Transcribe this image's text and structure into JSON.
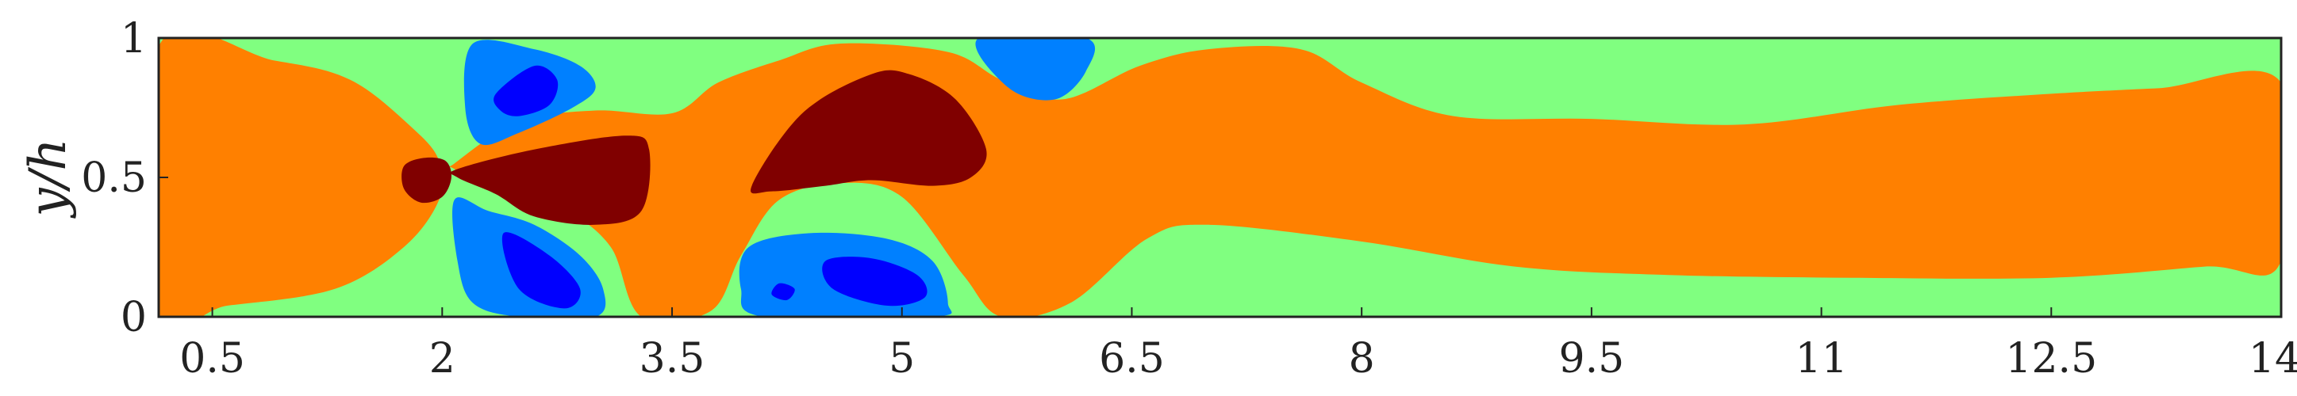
{
  "chart_data": {
    "type": "heatmap",
    "title": "",
    "xlabel": "",
    "ylabel": "y/h",
    "xlim": [
      0.15,
      14
    ],
    "ylim": [
      0,
      1
    ],
    "xticks": [
      0.5,
      2,
      3.5,
      5,
      6.5,
      8,
      9.5,
      11,
      12.5,
      14
    ],
    "xtick_labels": [
      "0.5",
      "2",
      "3.5",
      "5",
      "6.5",
      "8",
      "9.5",
      "11",
      "12.5",
      "14"
    ],
    "yticks": [
      0,
      0.5,
      1
    ],
    "ytick_labels": [
      "0",
      "0.5",
      "1"
    ],
    "colorbar": false,
    "levels": [
      {
        "name": "level-1",
        "color": "#0000ff"
      },
      {
        "name": "level-2",
        "color": "#0080ff"
      },
      {
        "name": "level-3",
        "color": "#80ff80"
      },
      {
        "name": "level-4",
        "color": "#ff8000"
      },
      {
        "name": "level-5",
        "color": "#800000"
      }
    ],
    "regions": [
      {
        "level": 4,
        "points": [
          [
            0.15,
            0.97
          ],
          [
            0.9,
            0.92
          ],
          [
            1.4,
            0.85
          ],
          [
            1.8,
            0.68
          ],
          [
            1.98,
            0.56
          ],
          [
            1.98,
            0.42
          ],
          [
            1.75,
            0.25
          ],
          [
            1.3,
            0.1
          ],
          [
            0.6,
            0.04
          ],
          [
            0.15,
            0.02
          ]
        ]
      },
      {
        "level": 4,
        "points": [
          [
            2.08,
            0.55
          ],
          [
            2.5,
            0.7
          ],
          [
            3.0,
            0.74
          ],
          [
            3.5,
            0.73
          ],
          [
            3.8,
            0.84
          ],
          [
            4.2,
            0.92
          ],
          [
            4.6,
            0.98
          ],
          [
            5.3,
            0.95
          ],
          [
            5.65,
            0.85
          ],
          [
            6.05,
            0.78
          ],
          [
            6.55,
            0.9
          ],
          [
            7.0,
            0.96
          ],
          [
            7.6,
            0.96
          ],
          [
            8.0,
            0.84
          ],
          [
            8.6,
            0.72
          ],
          [
            9.5,
            0.71
          ],
          [
            10.5,
            0.69
          ],
          [
            11.5,
            0.76
          ],
          [
            12.5,
            0.8
          ],
          [
            13.2,
            0.82
          ],
          [
            14,
            0.84
          ],
          [
            14,
            0.2
          ],
          [
            13.5,
            0.18
          ],
          [
            12.5,
            0.14
          ],
          [
            11.2,
            0.14
          ],
          [
            10.0,
            0.15
          ],
          [
            9.0,
            0.18
          ],
          [
            8.0,
            0.27
          ],
          [
            7.0,
            0.33
          ],
          [
            6.6,
            0.28
          ],
          [
            6.1,
            0.05
          ],
          [
            5.65,
            0.0
          ],
          [
            5.4,
            0.15
          ],
          [
            5.0,
            0.43
          ],
          [
            4.6,
            0.48
          ],
          [
            4.2,
            0.42
          ],
          [
            3.95,
            0.22
          ],
          [
            3.75,
            0.02
          ],
          [
            3.3,
            0.0
          ],
          [
            3.1,
            0.25
          ],
          [
            2.8,
            0.38
          ],
          [
            2.4,
            0.43
          ],
          [
            2.08,
            0.53
          ]
        ]
      },
      {
        "level": 5,
        "points": [
          [
            1.75,
            0.54
          ],
          [
            1.88,
            0.57
          ],
          [
            2.02,
            0.56
          ],
          [
            2.06,
            0.5
          ],
          [
            2.0,
            0.43
          ],
          [
            1.86,
            0.41
          ],
          [
            1.75,
            0.46
          ]
        ]
      },
      {
        "level": 5,
        "points": [
          [
            2.1,
            0.53
          ],
          [
            2.6,
            0.6
          ],
          [
            3.2,
            0.65
          ],
          [
            3.35,
            0.6
          ],
          [
            3.3,
            0.38
          ],
          [
            3.0,
            0.33
          ],
          [
            2.6,
            0.36
          ],
          [
            2.35,
            0.44
          ],
          [
            2.1,
            0.5
          ]
        ]
      },
      {
        "level": 5,
        "points": [
          [
            4.02,
            0.47
          ],
          [
            4.35,
            0.73
          ],
          [
            4.8,
            0.87
          ],
          [
            5.05,
            0.87
          ],
          [
            5.35,
            0.78
          ],
          [
            5.55,
            0.6
          ],
          [
            5.45,
            0.5
          ],
          [
            5.2,
            0.47
          ],
          [
            4.8,
            0.49
          ],
          [
            4.5,
            0.47
          ],
          [
            4.15,
            0.45
          ]
        ]
      },
      {
        "level": 2,
        "points": [
          [
            2.2,
            0.98
          ],
          [
            2.6,
            0.96
          ],
          [
            2.9,
            0.9
          ],
          [
            3.0,
            0.82
          ],
          [
            2.85,
            0.75
          ],
          [
            2.5,
            0.66
          ],
          [
            2.25,
            0.62
          ],
          [
            2.15,
            0.75
          ]
        ]
      },
      {
        "level": 1,
        "points": [
          [
            2.35,
            0.8
          ],
          [
            2.6,
            0.9
          ],
          [
            2.75,
            0.85
          ],
          [
            2.7,
            0.76
          ],
          [
            2.5,
            0.72
          ],
          [
            2.38,
            0.74
          ]
        ]
      },
      {
        "level": 2,
        "points": [
          [
            2.08,
            0.42
          ],
          [
            2.3,
            0.38
          ],
          [
            2.6,
            0.33
          ],
          [
            2.9,
            0.22
          ],
          [
            3.05,
            0.1
          ],
          [
            3.0,
            0.0
          ],
          [
            2.5,
            0.0
          ],
          [
            2.2,
            0.05
          ],
          [
            2.1,
            0.2
          ]
        ]
      },
      {
        "level": 1,
        "points": [
          [
            2.4,
            0.3
          ],
          [
            2.7,
            0.22
          ],
          [
            2.9,
            0.1
          ],
          [
            2.8,
            0.03
          ],
          [
            2.5,
            0.1
          ]
        ]
      },
      {
        "level": 2,
        "points": [
          [
            4.0,
            0.25
          ],
          [
            4.4,
            0.3
          ],
          [
            4.9,
            0.28
          ],
          [
            5.2,
            0.2
          ],
          [
            5.3,
            0.05
          ],
          [
            5.2,
            0.0
          ],
          [
            4.1,
            0.0
          ],
          [
            3.95,
            0.1
          ]
        ]
      },
      {
        "level": 1,
        "points": [
          [
            4.5,
            0.2
          ],
          [
            4.8,
            0.21
          ],
          [
            5.1,
            0.15
          ],
          [
            5.15,
            0.07
          ],
          [
            4.9,
            0.04
          ],
          [
            4.55,
            0.1
          ]
        ]
      },
      {
        "level": 1,
        "points": [
          [
            4.2,
            0.12
          ],
          [
            4.3,
            0.1
          ],
          [
            4.25,
            0.06
          ],
          [
            4.15,
            0.08
          ]
        ]
      },
      {
        "level": 2,
        "points": [
          [
            5.5,
            1.0
          ],
          [
            6.2,
            1.0
          ],
          [
            6.2,
            0.88
          ],
          [
            6.0,
            0.78
          ],
          [
            5.7,
            0.82
          ]
        ]
      }
    ]
  }
}
